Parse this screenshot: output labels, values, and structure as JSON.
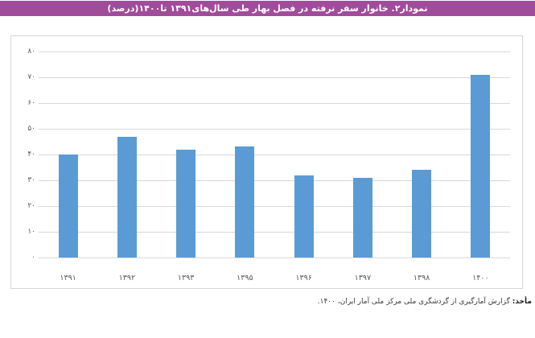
{
  "banner": {
    "title": "نمودار۲. خانوار سفر نرفته در فصل بهار طی سال‌های۱۳۹۱ تا۱۴۰۰(درصد)",
    "bg_color": "#a14c9b",
    "text_color": "#ffffff"
  },
  "chart_data": {
    "type": "bar",
    "title": "نمودار۲. خانوار سفر نرفته در فصل بهار طی سال‌های۱۳۹۱ تا۱۴۰۰(درصد)",
    "categories": [
      "۱۳۹۱",
      "۱۳۹۲",
      "۱۳۹۳",
      "۱۳۹۵",
      "۱۳۹۶",
      "۱۳۹۷",
      "۱۳۹۸",
      "۱۴۰۰"
    ],
    "values": [
      40,
      47,
      42,
      43,
      32,
      31,
      34,
      71
    ],
    "xlabel": "",
    "ylabel": "",
    "ylim": [
      0,
      80
    ],
    "ytick_step": 10,
    "ytick_labels": [
      "۰",
      "۱۰",
      "۲۰",
      "۳۰",
      "۴۰",
      "۵۰",
      "۶۰",
      "۷۰",
      "۸۰"
    ],
    "grid": true,
    "legend": false,
    "bar_color": "#5b9bd5",
    "gridline_color": "#d9d9d9",
    "axis_label_color": "#595959"
  },
  "footer": {
    "source_label": "مأخذ:",
    "source_text": "گزارش آمارگیری از گردشگری ملی مرکز ملی آمار ایران، ۱۴۰۰."
  }
}
